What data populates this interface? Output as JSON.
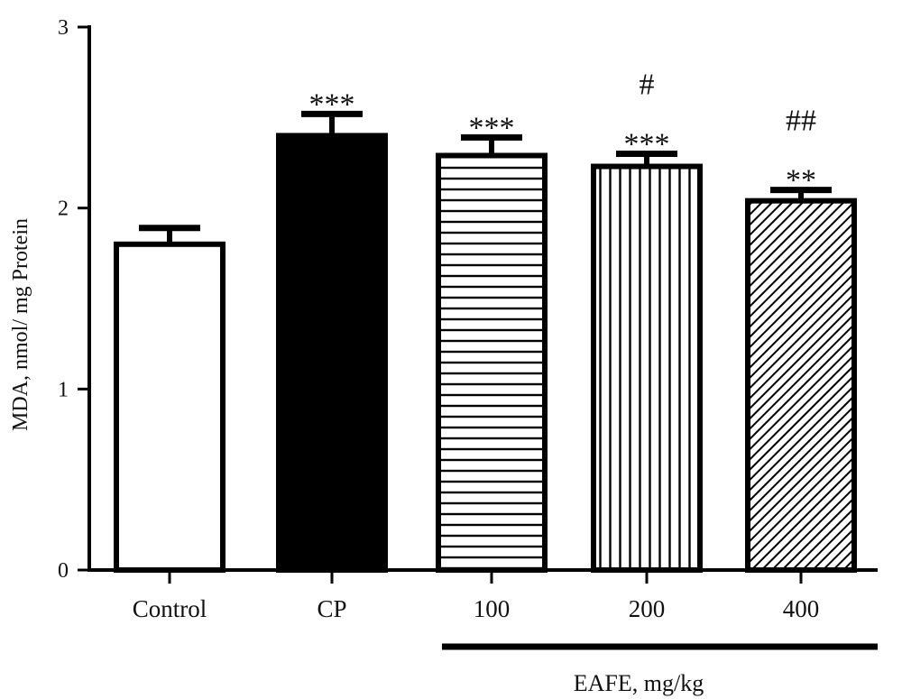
{
  "chart_data": {
    "type": "bar",
    "categories": [
      "Control",
      "CP",
      "100",
      "200",
      "400"
    ],
    "values": [
      1.8,
      2.4,
      2.29,
      2.23,
      2.04
    ],
    "errors": [
      0.09,
      0.12,
      0.1,
      0.07,
      0.06
    ],
    "patterns": [
      "open",
      "solid",
      "horizontal-lines",
      "vertical-lines",
      "diagonal-lines"
    ],
    "annotations": [
      [],
      [
        "***"
      ],
      [
        "***"
      ],
      [
        "***",
        "#"
      ],
      [
        "**",
        "##"
      ]
    ],
    "title": "",
    "xlabel": "",
    "ylabel": "MDA, nmol/ mg Protein",
    "ylim": [
      0,
      3
    ],
    "yticks": [
      0,
      1,
      2,
      3
    ],
    "group": {
      "label": "EAFE, mg/kg",
      "categories": [
        "100",
        "200",
        "400"
      ]
    },
    "grid": false,
    "legend": "none",
    "colors": {
      "bar_edge": "#000000",
      "bar_fill": "#ffffff",
      "solid_fill": "#000000"
    }
  }
}
